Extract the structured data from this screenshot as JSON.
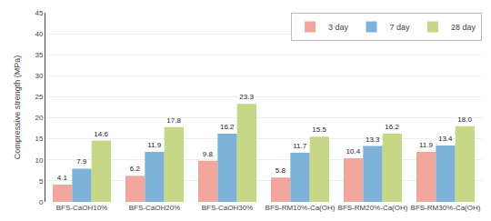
{
  "chart_data": {
    "type": "bar",
    "categories": [
      "BFS-CaOH10%",
      "BFS-CaOH20%",
      "BFS-CaOH30%",
      "BFS-RM10%-Ca(OH)",
      "BFS-RM20%-Ca(OH)",
      "BFS-RM30%-Ca(OH)"
    ],
    "series": [
      {
        "name": "3 day",
        "color": "#f2a59d",
        "values": [
          4.1,
          6.2,
          9.8,
          5.8,
          10.4,
          11.9
        ]
      },
      {
        "name": "7 day",
        "color": "#7fb2d8",
        "values": [
          7.9,
          11.9,
          16.2,
          11.7,
          13.3,
          13.4
        ]
      },
      {
        "name": "28 day",
        "color": "#c6d888",
        "values": [
          14.6,
          17.8,
          23.3,
          15.5,
          16.2,
          18.0
        ],
        "value_labels": [
          "14.6",
          "17.8",
          "23.3",
          "15.5",
          "16.2",
          "18.0"
        ]
      }
    ],
    "ylabel": "Compressive strength (MPa)",
    "ylim": [
      0,
      45
    ],
    "yticks": [
      0,
      5,
      10,
      15,
      20,
      25,
      30,
      35,
      40,
      45
    ],
    "grid": true,
    "legend": "upper right",
    "data_labels": true
  }
}
